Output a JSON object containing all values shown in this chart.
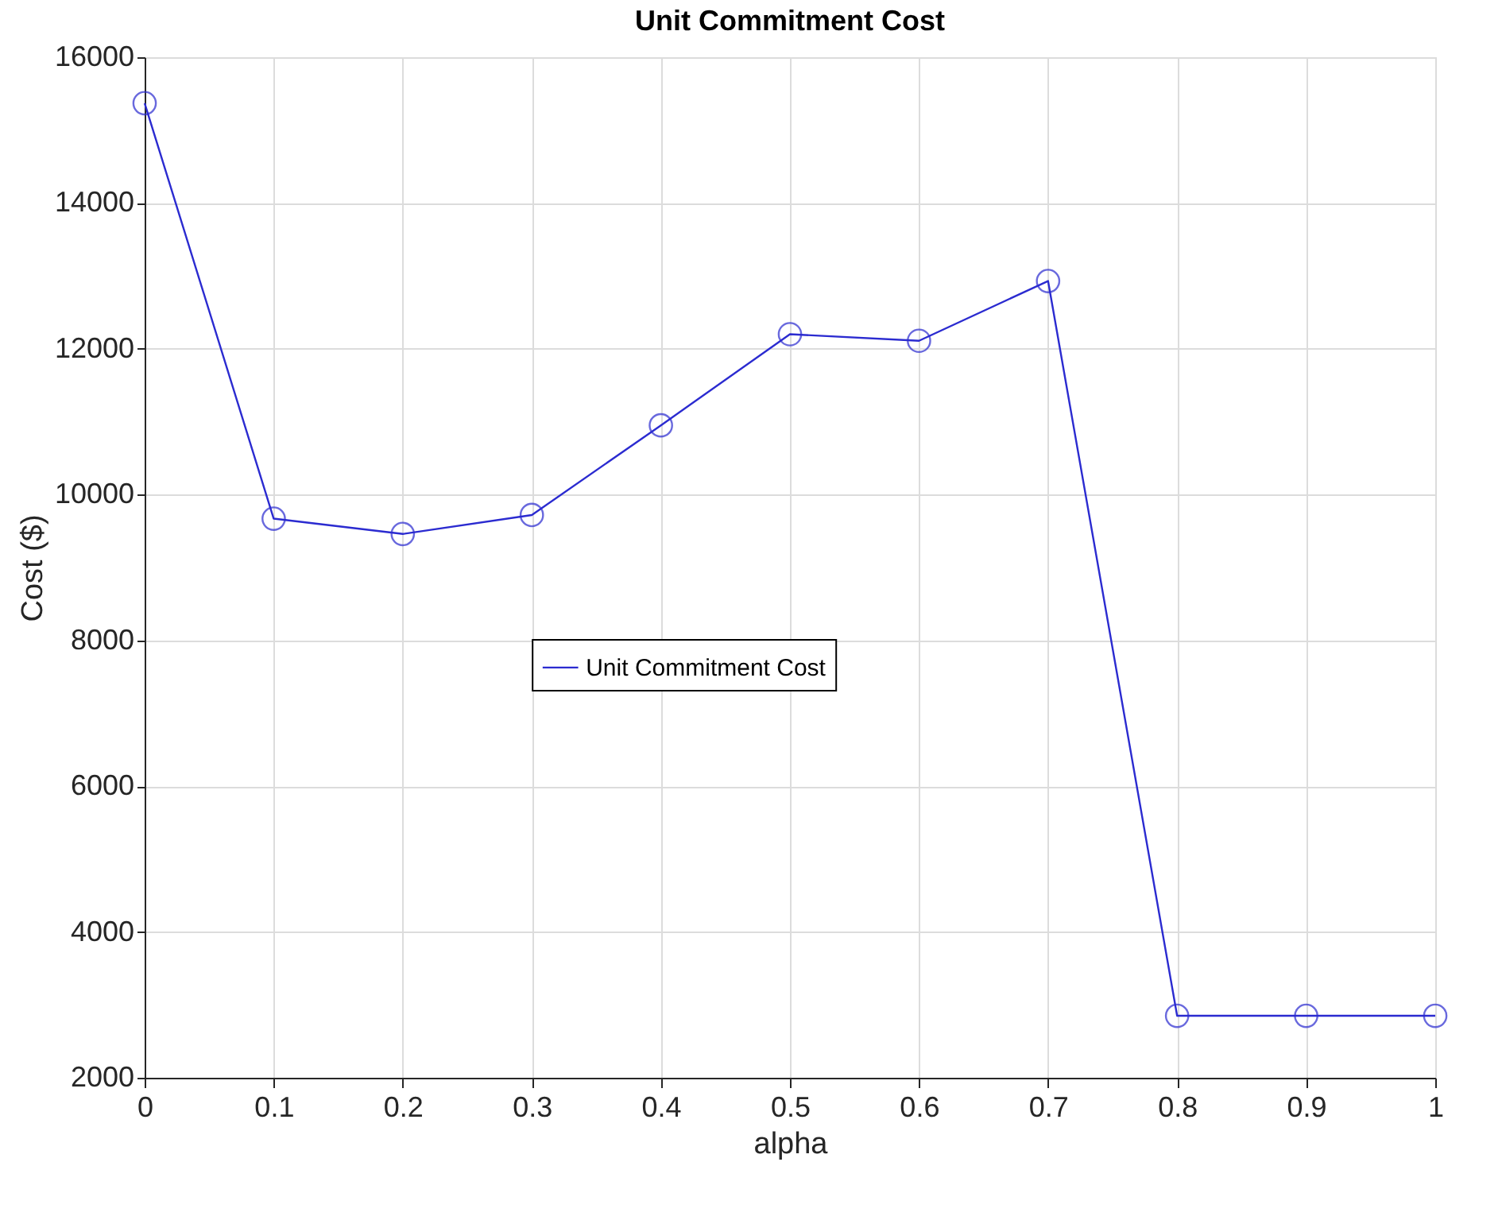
{
  "chart_data": {
    "type": "line",
    "title": "Unit Commitment Cost",
    "xlabel": "alpha",
    "ylabel": "Cost ($)",
    "x": [
      0,
      0.1,
      0.2,
      0.3,
      0.4,
      0.5,
      0.6,
      0.7,
      0.8,
      0.9,
      1
    ],
    "series": [
      {
        "name": "Unit Commitment Cost",
        "color": "#2b2bd0",
        "values": [
          15370,
          9670,
          9460,
          9720,
          10950,
          12200,
          12110,
          12930,
          2850,
          2850,
          2850
        ]
      }
    ],
    "xlim": [
      0,
      1
    ],
    "xticks": [
      0,
      0.1,
      0.2,
      0.3,
      0.4,
      0.5,
      0.6,
      0.7,
      0.8,
      0.9,
      1
    ],
    "ylim": [
      2000,
      16000
    ],
    "yticks": [
      2000,
      4000,
      6000,
      8000,
      10000,
      12000,
      14000,
      16000
    ],
    "grid": true,
    "legend": "center",
    "marker": "circle",
    "line_style": "solid"
  }
}
